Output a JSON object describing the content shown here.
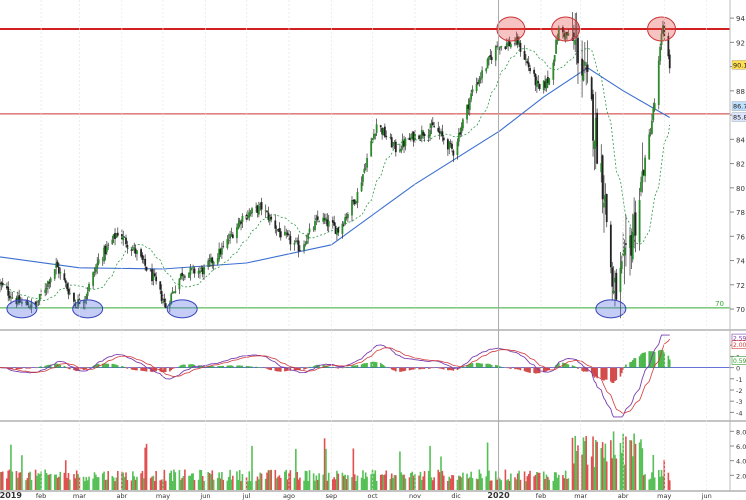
{
  "chart_data": [
    {
      "type": "candlestick",
      "panel": "price",
      "ylim": [
        68.6,
        95.0
      ],
      "y_ticks": [
        "70",
        "72",
        "74",
        "76",
        "78",
        "80",
        "82",
        "84",
        "86",
        "88",
        "90",
        "92",
        "94"
      ],
      "x_labels": [
        "2019",
        "feb",
        "mar",
        "abr",
        "may",
        "jun",
        "jul",
        "ago",
        "sep",
        "oct",
        "nov",
        "dic",
        "2020",
        "feb",
        "mar",
        "abr",
        "may",
        "jun"
      ],
      "price_path": {
        "dates": [
          "2019-01-02",
          "2019-01-15",
          "2019-01-28",
          "2019-02-12",
          "2019-02-26",
          "2019-03-05",
          "2019-03-15",
          "2019-03-29",
          "2019-04-12",
          "2019-04-25",
          "2019-05-03",
          "2019-05-15",
          "2019-05-31",
          "2019-06-14",
          "2019-06-28",
          "2019-07-12",
          "2019-07-26",
          "2019-08-09",
          "2019-08-23",
          "2019-09-06",
          "2019-09-20",
          "2019-10-04",
          "2019-10-18",
          "2019-11-01",
          "2019-11-15",
          "2019-11-29",
          "2019-12-13",
          "2019-12-31",
          "2020-01-15",
          "2020-01-31",
          "2020-02-07",
          "2020-02-14",
          "2020-02-21",
          "2020-02-28",
          "2020-03-06",
          "2020-03-12",
          "2020-03-18",
          "2020-03-25",
          "2020-04-03",
          "2020-04-14",
          "2020-04-24",
          "2020-04-30",
          "2020-05-05"
        ],
        "closes": [
          72.0,
          70.6,
          70.2,
          73.6,
          70.4,
          71.0,
          74.0,
          76.3,
          74.6,
          72.3,
          70.2,
          73.0,
          73.2,
          75.0,
          77.6,
          78.4,
          76.2,
          75.0,
          77.5,
          76.5,
          79.5,
          85.3,
          83.2,
          84.3,
          85.0,
          83.0,
          88.0,
          91.7,
          92.0,
          88.0,
          89.0,
          93.0,
          92.5,
          91.5,
          88.0,
          84.5,
          80.0,
          71.0,
          73.5,
          80.0,
          87.0,
          93.5,
          90.0
        ]
      },
      "moving_average": {
        "label": "",
        "values_at": [
          "2019-01-02",
          "2019-03-01",
          "2019-05-01",
          "2019-07-01",
          "2019-09-01",
          "2019-11-01",
          "2020-01-02",
          "2020-02-03",
          "2020-03-06",
          "2020-04-01",
          "2020-05-05"
        ],
        "values": [
          74.3,
          73.4,
          73.3,
          73.8,
          75.3,
          80.3,
          84.7,
          87.5,
          89.9,
          88.0,
          85.8
        ]
      },
      "horizontal_lines": [
        {
          "value": 93.1,
          "color": "#cc0000"
        },
        {
          "value": 86.1,
          "color": "#cc3333"
        },
        {
          "value": 70.1,
          "color": "#33aa33",
          "label": "70"
        }
      ],
      "price_badges": [
        {
          "text": "90.1",
          "value": 90.1,
          "bg": "#ffdd55"
        },
        {
          "text": "86.7",
          "value": 86.7,
          "bg": "#bfe0ff"
        },
        {
          "text": "85.8",
          "value": 85.8,
          "bg": "#dde6ff"
        }
      ],
      "highlights": {
        "tops": [
          "2020-01-10",
          "2020-02-19",
          "2020-04-29"
        ],
        "bottoms": [
          "2019-01-18",
          "2019-03-07",
          "2019-05-15",
          "2020-03-23"
        ]
      }
    },
    {
      "type": "macd",
      "panel": "oscillator",
      "ylim": [
        -4.5,
        3.0
      ],
      "y_ticks": [
        "2",
        "1",
        "0",
        "-1",
        "-2",
        "-3",
        "-4"
      ],
      "badges": [
        {
          "text": "2.59",
          "value": 2.59,
          "color": "#7a3fb0"
        },
        {
          "text": "2.00",
          "value": 2.0,
          "color": "#d23a3a"
        },
        {
          "text": "0.59",
          "value": 0.59,
          "color": "#2e9e2e"
        }
      ]
    },
    {
      "type": "bar",
      "panel": "volume",
      "ylim": [
        0,
        9
      ],
      "y_ticks": [
        "8.00",
        "6.00",
        "4.00",
        "2.00"
      ]
    }
  ]
}
